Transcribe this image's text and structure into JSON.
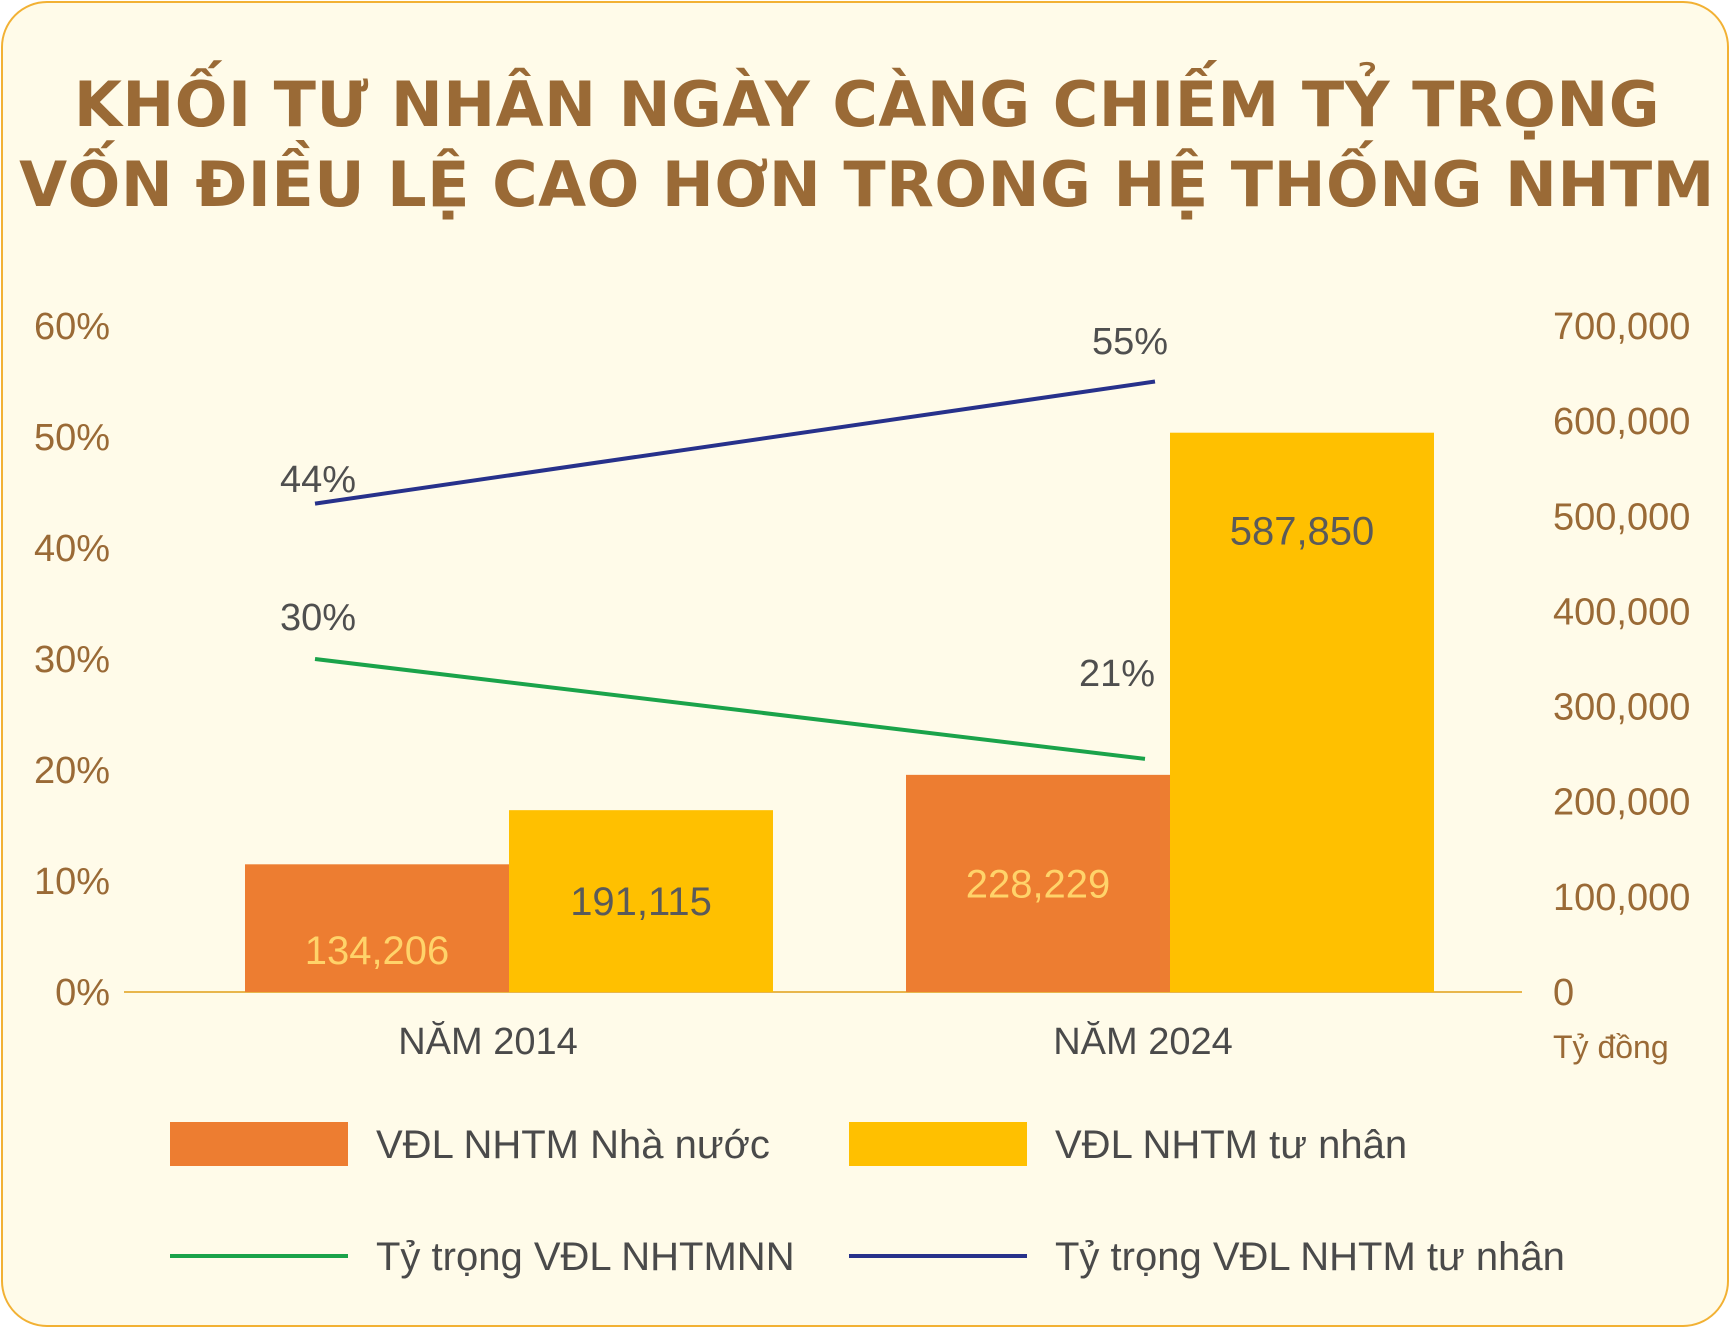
{
  "title_lines": [
    "KHỐI TƯ NHÂN NGÀY CÀNG CHIẾM TỶ TRỌNG",
    "VỐN ĐIỀU LỆ CAO HƠN TRONG HỆ THỐNG NHTM"
  ],
  "chart_data": {
    "type": "bar",
    "categories": [
      "NĂM 2014",
      "NĂM 2024"
    ],
    "bar_series": [
      {
        "name": "VĐL NHTM Nhà nước",
        "values": [
          134206,
          228229
        ],
        "labels": [
          "134,206",
          "228,229"
        ],
        "color": "#ed7d31"
      },
      {
        "name": "VĐL NHTM tư nhân",
        "values": [
          191115,
          587850
        ],
        "labels": [
          "191,115",
          "587,850"
        ],
        "color": "#ffc000"
      }
    ],
    "line_series": [
      {
        "name": "Tỷ trọng VĐL NHTMNN",
        "values": [
          30,
          21
        ],
        "labels": [
          "30%",
          "21%"
        ],
        "color": "#1aa34a"
      },
      {
        "name": "Tỷ trọng VĐL NHTM tư nhân",
        "values": [
          44,
          55
        ],
        "labels": [
          "44%",
          "55%"
        ],
        "color": "#27318b"
      }
    ],
    "y_left": {
      "min": 0,
      "max": 60,
      "ticks": [
        "0%",
        "10%",
        "20%",
        "30%",
        "40%",
        "50%",
        "60%"
      ]
    },
    "y_right": {
      "min": 0,
      "max": 700000,
      "ticks": [
        "0",
        "100,000",
        "200,000",
        "300,000",
        "400,000",
        "500,000",
        "600,000",
        "700,000"
      ],
      "unit": "Tỷ đồng"
    },
    "grid": false,
    "legend_position": "bottom"
  },
  "colors": {
    "title": "#9a6a36",
    "axis_text": "#9a6a36",
    "axis_line": "#e8b64c",
    "card_bg": "#fffbe9",
    "card_border": "#f2b134"
  }
}
